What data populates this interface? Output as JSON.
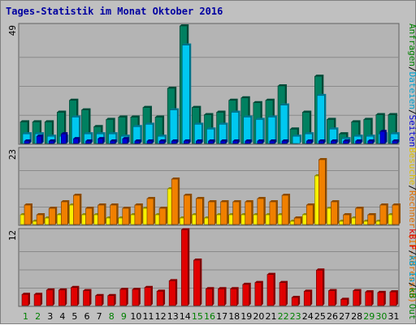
{
  "title": "Tages-Statistik im Monat Oktober 2016",
  "colors": {
    "background": "#c0c0c0",
    "panel": "#b4b4b4",
    "grid": "#8a8a8a",
    "title": "#0000a0",
    "hits": "#008060",
    "files": "#00c8f0",
    "pages": "#0000d8",
    "sites": "#f08000",
    "visits": "#f8f000",
    "kbf": "#e00000",
    "weekday_label": "#000080",
    "weekend_label": "#008000"
  },
  "right_labels": {
    "top": [
      {
        "text": "Anfragen",
        "color": "#008000"
      },
      {
        "text": "/",
        "color": "#000000"
      },
      {
        "text": "Dateien",
        "color": "#00a0d0"
      },
      {
        "text": "/",
        "color": "#000000"
      },
      {
        "text": "Seiten",
        "color": "#0000d8"
      }
    ],
    "middle": [
      {
        "text": "Besuche",
        "color": "#e0c000"
      },
      {
        "text": "/",
        "color": "#000000"
      },
      {
        "text": "Rechner (IP-Adressen)",
        "color": "#e07000"
      }
    ],
    "bottom": [
      {
        "text": "kB F",
        "color": "#e00000"
      },
      {
        "text": "/",
        "color": "#000000"
      },
      {
        "text": "kB In",
        "color": "#00a0d0"
      },
      {
        "text": "/",
        "color": "#000000"
      },
      {
        "text": "kB Out",
        "color": "#008000"
      }
    ]
  },
  "chart_data": [
    {
      "type": "bar",
      "panel": "top",
      "ylabel_max": "49",
      "ylim": [
        0,
        49
      ],
      "categories": [
        "1",
        "2",
        "3",
        "4",
        "5",
        "6",
        "7",
        "8",
        "9",
        "10",
        "11",
        "12",
        "13",
        "14",
        "15",
        "16",
        "17",
        "18",
        "19",
        "20",
        "21",
        "22",
        "23",
        "24",
        "25",
        "26",
        "27",
        "28",
        "29",
        "30",
        "31"
      ],
      "series": [
        {
          "name": "Anfragen",
          "values": [
            9,
            9,
            9,
            13,
            18,
            14,
            7,
            10,
            11,
            11,
            15,
            11,
            23,
            49,
            15,
            12,
            13,
            18,
            19,
            17,
            18,
            24,
            6,
            13,
            28,
            10,
            4,
            9,
            10,
            12,
            12
          ]
        },
        {
          "name": "Dateien",
          "values": [
            4,
            4,
            3,
            3,
            11,
            4,
            4,
            4,
            3,
            7,
            8,
            3,
            14,
            41,
            8,
            6,
            8,
            13,
            11,
            10,
            11,
            16,
            3,
            4,
            20,
            6,
            2,
            3,
            3,
            4,
            4
          ]
        },
        {
          "name": "Seiten",
          "values": [
            1,
            3,
            1,
            4,
            2,
            1,
            2,
            1,
            2,
            1,
            1,
            1,
            1,
            1,
            1,
            1,
            1,
            1,
            1,
            1,
            1,
            1,
            0,
            1,
            1,
            1,
            1,
            1,
            1,
            5,
            1
          ]
        }
      ]
    },
    {
      "type": "bar",
      "panel": "middle",
      "ylabel_max": "23",
      "ylim": [
        0,
        23
      ],
      "categories": [
        "1",
        "2",
        "3",
        "4",
        "5",
        "6",
        "7",
        "8",
        "9",
        "10",
        "11",
        "12",
        "13",
        "14",
        "15",
        "16",
        "17",
        "18",
        "19",
        "20",
        "21",
        "22",
        "23",
        "24",
        "25",
        "26",
        "27",
        "28",
        "29",
        "30",
        "31"
      ],
      "series": [
        {
          "name": "Besuche",
          "values": [
            3,
            1,
            2,
            3,
            6,
            3,
            3,
            2,
            2,
            3,
            5,
            3,
            11,
            2,
            3,
            2,
            3,
            3,
            3,
            3,
            3,
            3,
            1,
            3,
            15,
            5,
            1,
            2,
            1,
            1,
            3
          ]
        },
        {
          "name": "Rechner",
          "values": [
            6,
            3,
            5,
            7,
            9,
            5,
            6,
            6,
            5,
            6,
            8,
            5,
            14,
            9,
            8,
            7,
            7,
            7,
            7,
            8,
            7,
            9,
            2,
            6,
            20,
            7,
            3,
            5,
            3,
            6,
            6
          ]
        }
      ]
    },
    {
      "type": "bar",
      "panel": "bottom",
      "ylabel_max": "12",
      "ylim": [
        0,
        12
      ],
      "categories": [
        "1",
        "2",
        "3",
        "4",
        "5",
        "6",
        "7",
        "8",
        "9",
        "10",
        "11",
        "12",
        "13",
        "14",
        "15",
        "16",
        "17",
        "18",
        "19",
        "20",
        "21",
        "22",
        "23",
        "24",
        "25",
        "26",
        "27",
        "28",
        "29",
        "30",
        "31"
      ],
      "series": [
        {
          "name": "kB F",
          "values": [
            1.8,
            1.8,
            2.5,
            2.5,
            2.9,
            2.4,
            1.6,
            1.6,
            2.6,
            2.6,
            2.9,
            2.3,
            4.0,
            12.2,
            7.3,
            2.7,
            2.7,
            2.7,
            3.4,
            3.7,
            5.0,
            3.7,
            1.3,
            2.3,
            5.7,
            2.4,
            1.0,
            2.4,
            2.2,
            2.1,
            2.2
          ]
        }
      ]
    }
  ]
}
